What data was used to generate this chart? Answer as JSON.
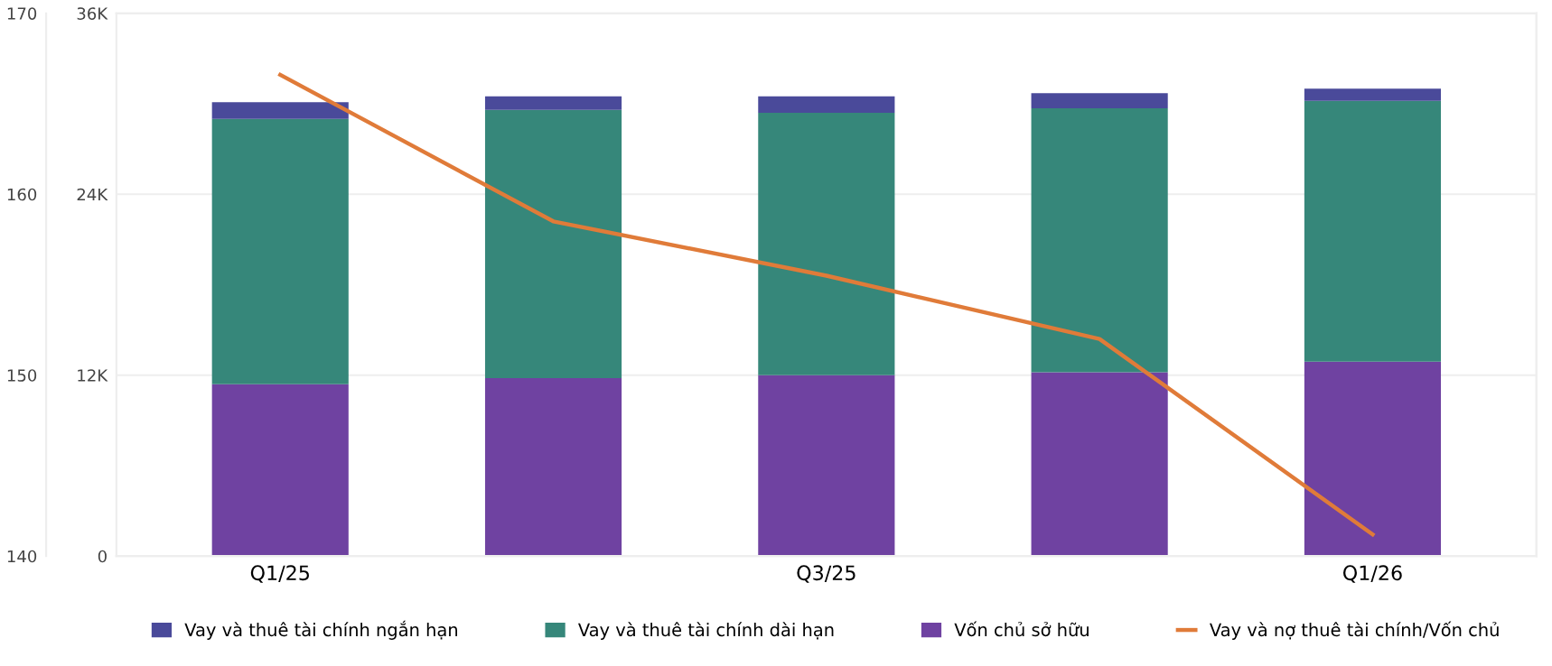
{
  "chart_data": {
    "type": "bar",
    "stacked": true,
    "categories": [
      "Q1/25",
      null,
      "Q3/25",
      null,
      "Q1/26"
    ],
    "series": [
      {
        "name": "Vốn chủ sở hữu",
        "color": "#6f42a1",
        "values": [
          11400,
          11800,
          12000,
          12200,
          12900
        ]
      },
      {
        "name": "Vay và thuê tài chính dài hạn",
        "color": "#36877a",
        "values": [
          17600,
          17800,
          17400,
          17500,
          17300
        ]
      },
      {
        "name": "Vay và thuê tài chính ngắn hạn",
        "color": "#4a4a9a",
        "values": [
          1100,
          900,
          1100,
          1000,
          800
        ]
      },
      {
        "name": "Vay và nợ thuê tài chính/Vốn chủ",
        "color": "#e07b39",
        "type": "line",
        "axis": "y2",
        "values": [
          166.6,
          158.5,
          155.5,
          152.0,
          141.2
        ]
      }
    ],
    "ylim": [
      0,
      36000
    ],
    "yticks": [
      {
        "value": 0,
        "label": "0"
      },
      {
        "value": 12000,
        "label": "12K"
      },
      {
        "value": 24000,
        "label": "24K"
      },
      {
        "value": 36000,
        "label": "36K"
      }
    ],
    "y2lim": [
      140,
      170
    ],
    "y2ticks": [
      140,
      150,
      160,
      170
    ],
    "grid": "y",
    "legend": "bottom",
    "marker": "none",
    "line_style": "solid"
  }
}
